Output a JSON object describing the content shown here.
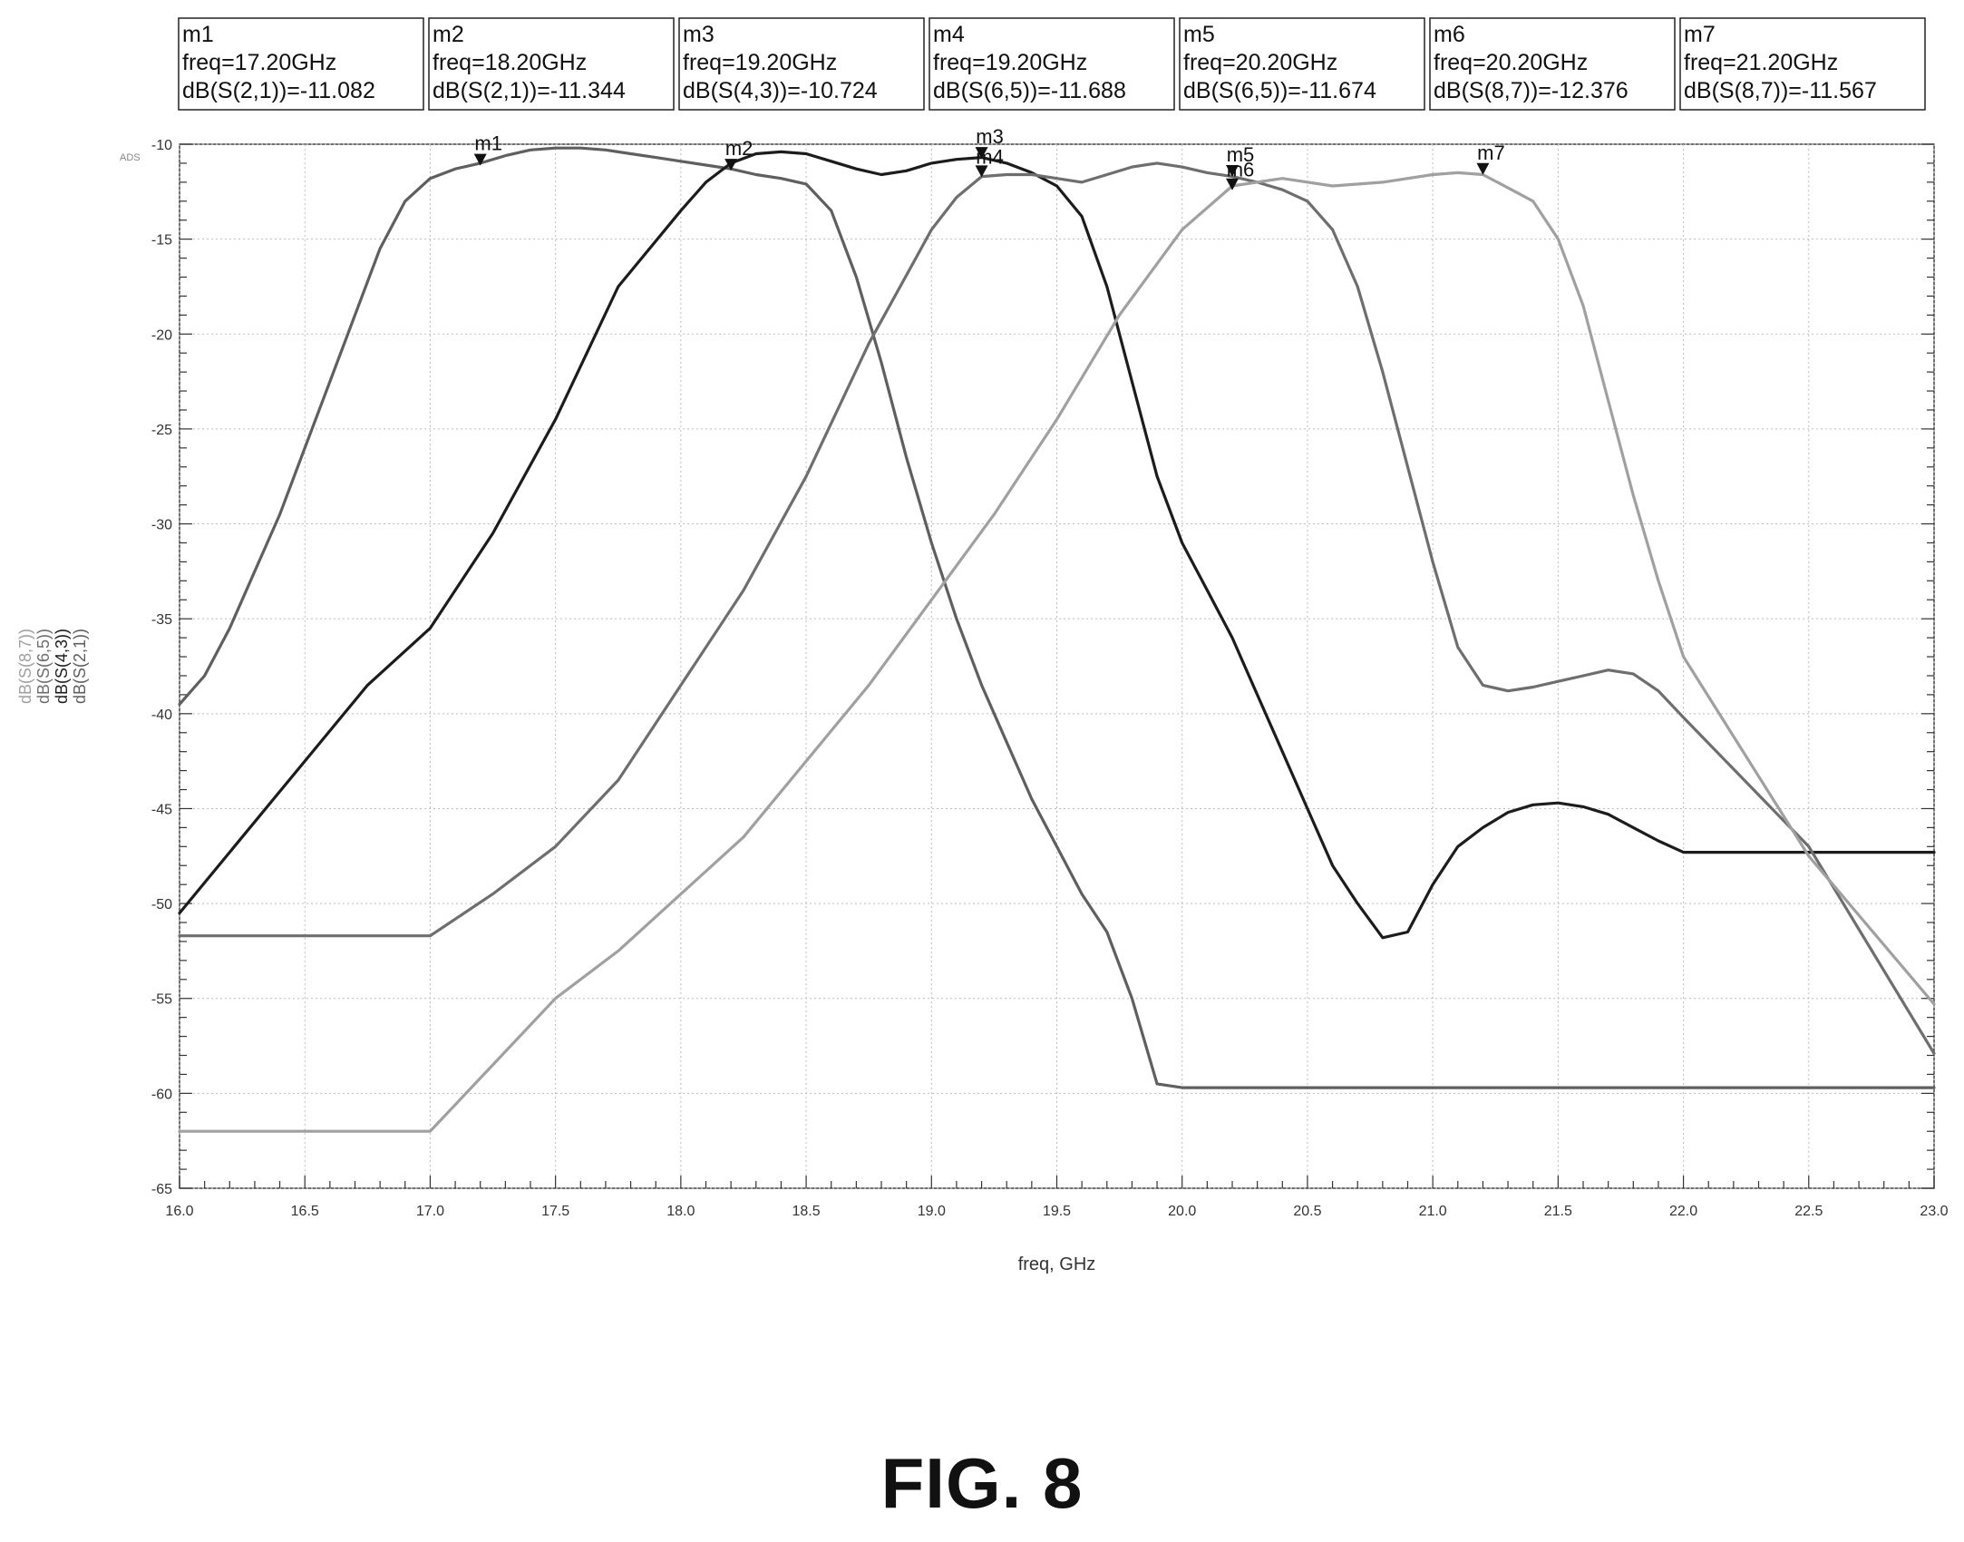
{
  "figure_label": "FIG. 8",
  "ads_tag": "ADS",
  "chart_data": {
    "type": "line",
    "xlabel": "freq, GHz",
    "ylabel_lines": [
      "dB(S(8,7))",
      "dB(S(6,5))",
      "dB(S(4,3))",
      "dB(S(2,1))"
    ],
    "xlim": [
      16.0,
      23.0
    ],
    "ylim": [
      -65,
      -10
    ],
    "x_ticks": [
      "16.0",
      "16.5",
      "17.0",
      "17.5",
      "18.0",
      "18.5",
      "19.0",
      "19.5",
      "20.0",
      "20.5",
      "21.0",
      "21.5",
      "22.0",
      "22.5",
      "23.0"
    ],
    "y_ticks": [
      "-10",
      "-15",
      "-20",
      "-25",
      "-30",
      "-35",
      "-40",
      "-45",
      "-50",
      "-55",
      "-60",
      "-65"
    ],
    "grid": true,
    "series": [
      {
        "name": "dB(S(2,1))",
        "color": "#5f5f5f",
        "x": [
          16.0,
          16.1,
          16.2,
          16.3,
          16.4,
          16.5,
          16.6,
          16.7,
          16.8,
          16.9,
          17.0,
          17.1,
          17.2,
          17.3,
          17.4,
          17.5,
          17.6,
          17.7,
          17.8,
          17.9,
          18.0,
          18.1,
          18.2,
          18.3,
          18.4,
          18.5,
          18.6,
          18.7,
          18.8,
          18.9,
          19.0,
          19.1,
          19.2,
          19.3,
          19.4,
          19.5,
          19.6,
          19.7,
          19.8,
          19.9,
          20.0,
          20.5,
          21.0,
          21.5,
          22.0,
          22.5,
          23.0
        ],
        "y": [
          -39.5,
          -38.0,
          -35.5,
          -32.5,
          -29.5,
          -26.0,
          -22.5,
          -19.0,
          -15.5,
          -13.0,
          -11.8,
          -11.3,
          -11.0,
          -10.6,
          -10.3,
          -10.2,
          -10.2,
          -10.3,
          -10.5,
          -10.7,
          -10.9,
          -11.1,
          -11.3,
          -11.6,
          -11.8,
          -12.1,
          -13.5,
          -17.0,
          -21.5,
          -26.5,
          -31.0,
          -35.0,
          -38.5,
          -41.5,
          -44.5,
          -47.0,
          -49.5,
          -51.5,
          -55.0,
          -59.5,
          -59.7,
          -59.7,
          -59.7,
          -59.7,
          -59.7,
          -59.7,
          -59.7
        ]
      },
      {
        "name": "dB(S(4,3))",
        "color": "#1c1c1c",
        "x": [
          16.0,
          16.25,
          16.5,
          16.75,
          17.0,
          17.25,
          17.5,
          17.75,
          18.0,
          18.1,
          18.2,
          18.3,
          18.4,
          18.5,
          18.6,
          18.7,
          18.8,
          18.9,
          19.0,
          19.1,
          19.2,
          19.3,
          19.4,
          19.5,
          19.6,
          19.7,
          19.8,
          19.9,
          20.0,
          20.1,
          20.2,
          20.3,
          20.4,
          20.5,
          20.6,
          20.7,
          20.8,
          20.9,
          21.0,
          21.1,
          21.2,
          21.3,
          21.4,
          21.5,
          21.6,
          21.7,
          21.8,
          21.9,
          22.0,
          22.5,
          23.0
        ],
        "y": [
          -50.5,
          -46.5,
          -42.5,
          -38.5,
          -35.5,
          -30.5,
          -24.5,
          -17.5,
          -13.5,
          -12.0,
          -11.0,
          -10.5,
          -10.4,
          -10.5,
          -10.9,
          -11.3,
          -11.6,
          -11.4,
          -11.0,
          -10.8,
          -10.7,
          -11.0,
          -11.5,
          -12.2,
          -13.8,
          -17.5,
          -22.5,
          -27.5,
          -31.0,
          -33.5,
          -36.0,
          -39.0,
          -42.0,
          -45.0,
          -48.0,
          -50.0,
          -51.8,
          -51.5,
          -49.0,
          -47.0,
          -46.0,
          -45.2,
          -44.8,
          -44.7,
          -44.9,
          -45.3,
          -46.0,
          -46.7,
          -47.3,
          -47.3,
          -47.3
        ]
      },
      {
        "name": "dB(S(6,5))",
        "color": "#6e6e6e",
        "x": [
          16.0,
          16.5,
          17.0,
          17.25,
          17.5,
          17.75,
          18.0,
          18.25,
          18.5,
          18.75,
          19.0,
          19.1,
          19.2,
          19.3,
          19.4,
          19.5,
          19.6,
          19.7,
          19.8,
          19.9,
          20.0,
          20.1,
          20.2,
          20.3,
          20.4,
          20.5,
          20.6,
          20.7,
          20.8,
          20.9,
          21.0,
          21.1,
          21.2,
          21.3,
          21.4,
          21.5,
          21.6,
          21.7,
          21.8,
          21.9,
          22.0,
          22.5,
          23.0
        ],
        "y": [
          -51.7,
          -51.7,
          -51.7,
          -49.5,
          -47.0,
          -43.5,
          -38.5,
          -33.5,
          -27.5,
          -20.5,
          -14.5,
          -12.8,
          -11.7,
          -11.6,
          -11.6,
          -11.8,
          -12.0,
          -11.6,
          -11.2,
          -11.0,
          -11.2,
          -11.5,
          -11.7,
          -12.0,
          -12.4,
          -13.0,
          -14.5,
          -17.5,
          -22.0,
          -27.0,
          -32.0,
          -36.5,
          -38.5,
          -38.8,
          -38.6,
          -38.3,
          -38.0,
          -37.7,
          -37.9,
          -38.8,
          -40.2,
          -47.0,
          -57.9
        ]
      },
      {
        "name": "dB(S(8,7))",
        "color": "#a0a0a0",
        "x": [
          16.0,
          16.5,
          17.0,
          17.25,
          17.5,
          17.75,
          18.0,
          18.25,
          18.5,
          18.75,
          19.0,
          19.25,
          19.5,
          19.75,
          20.0,
          20.2,
          20.4,
          20.6,
          20.8,
          21.0,
          21.1,
          21.2,
          21.3,
          21.4,
          21.5,
          21.6,
          21.7,
          21.8,
          21.9,
          22.0,
          22.5,
          23.0
        ],
        "y": [
          -62.0,
          -62.0,
          -62.0,
          -58.5,
          -55.0,
          -52.5,
          -49.5,
          -46.5,
          -42.5,
          -38.5,
          -34.0,
          -29.5,
          -24.5,
          -19.0,
          -14.5,
          -12.2,
          -11.8,
          -12.2,
          -12.0,
          -11.6,
          -11.5,
          -11.6,
          -12.3,
          -13.0,
          -15.0,
          -18.5,
          -23.5,
          -28.5,
          -33.0,
          -37.0,
          -47.5,
          -55.3
        ]
      }
    ],
    "markers": [
      {
        "name": "m1",
        "freq": 17.2,
        "value": -11.082,
        "trace": "dB(S(2,1))",
        "line1": "m1",
        "line2": "freq=17.20GHz",
        "line3": "dB(S(2,1))=-11.082"
      },
      {
        "name": "m2",
        "freq": 18.2,
        "value": -11.344,
        "trace": "dB(S(2,1))",
        "line1": "m2",
        "line2": "freq=18.20GHz",
        "line3": "dB(S(2,1))=-11.344"
      },
      {
        "name": "m3",
        "freq": 19.2,
        "value": -10.724,
        "trace": "dB(S(4,3))",
        "line1": "m3",
        "line2": "freq=19.20GHz",
        "line3": "dB(S(4,3))=-10.724"
      },
      {
        "name": "m4",
        "freq": 19.2,
        "value": -11.688,
        "trace": "dB(S(6,5))",
        "line1": "m4",
        "line2": "freq=19.20GHz",
        "line3": "dB(S(6,5))=-11.688"
      },
      {
        "name": "m5",
        "freq": 20.2,
        "value": -11.674,
        "trace": "dB(S(6,5))",
        "line1": "m5",
        "line2": "freq=20.20GHz",
        "line3": "dB(S(6,5))=-11.674"
      },
      {
        "name": "m6",
        "freq": 20.2,
        "value": -12.376,
        "trace": "dB(S(8,7))",
        "line1": "m6",
        "line2": "freq=20.20GHz",
        "line3": "dB(S(8,7))=-12.376"
      },
      {
        "name": "m7",
        "freq": 21.2,
        "value": -11.567,
        "trace": "dB(S(8,7))",
        "line1": "m7",
        "line2": "freq=21.20GHz",
        "line3": "dB(S(8,7))=-11.567"
      }
    ]
  }
}
